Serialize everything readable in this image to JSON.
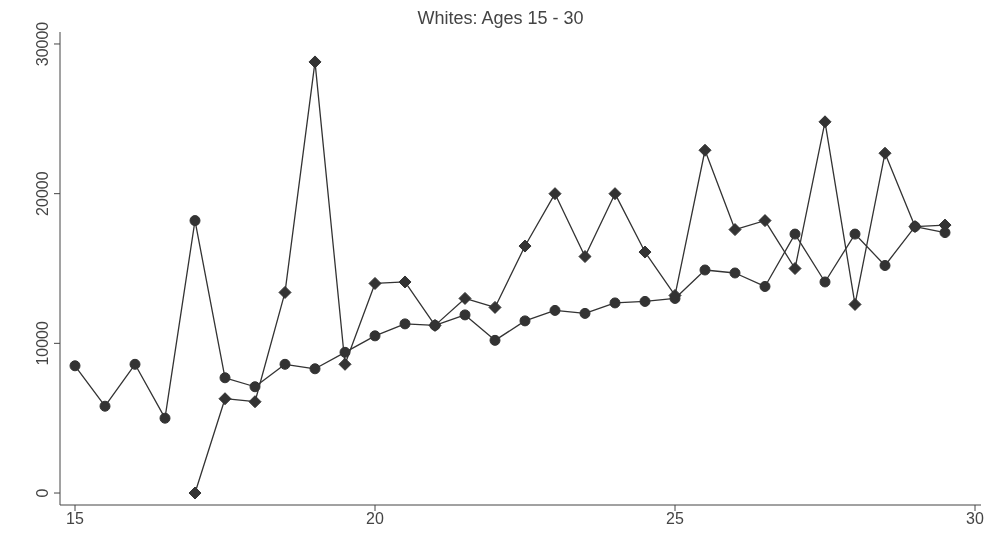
{
  "chart_data": {
    "type": "line",
    "title": "Whites: Ages 15 - 30",
    "xlim": [
      14.75,
      30.1
    ],
    "xticks": [
      15,
      20,
      25,
      30
    ],
    "ylim": [
      -800,
      30800
    ],
    "yticks": [
      0,
      10000,
      20000,
      30000
    ],
    "line_style": "solid",
    "series": [
      {
        "color": "#333333",
        "marker": "circle",
        "x": [
          15,
          15.5,
          16,
          16.5,
          17,
          17.5,
          18,
          18.5,
          19,
          19.5,
          20,
          20.5,
          21,
          21.5,
          22,
          22.5,
          23,
          23.5,
          24,
          24.5,
          25,
          25.5,
          26,
          26.5,
          27,
          27.5,
          28,
          28.5,
          29,
          29.5
        ],
        "values": [
          8500,
          5800,
          8600,
          5000,
          18200,
          7700,
          7100,
          8600,
          8300,
          9400,
          10500,
          11300,
          11200,
          11900,
          10200,
          11500,
          12200,
          12000,
          12700,
          12800,
          13000,
          14900,
          14700,
          13800,
          17300,
          14100,
          17300,
          15200,
          17800,
          17400
        ]
      },
      {
        "color": "#333333",
        "marker": "diamond",
        "x": [
          17,
          17.5,
          18,
          18.5,
          19,
          19.5,
          20,
          20.5,
          21,
          21.5,
          22,
          22.5,
          23,
          23.5,
          24,
          24.5,
          25,
          25.5,
          26,
          26.5,
          27,
          27.5,
          28,
          28.5,
          29,
          29.5
        ],
        "values": [
          0,
          6300,
          6100,
          13400,
          28800,
          8600,
          14000,
          14100,
          11200,
          13000,
          12400,
          16500,
          20000,
          15800,
          20000,
          16100,
          13200,
          22900,
          17600,
          18200,
          15000,
          24800,
          12600,
          22700,
          17800,
          17900
        ]
      }
    ]
  }
}
